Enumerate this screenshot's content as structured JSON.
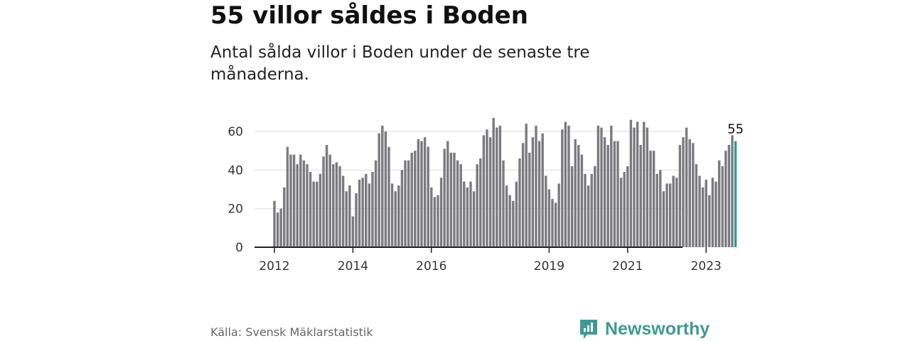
{
  "header": {
    "title": "55 villor såldes i Boden",
    "subtitle": "Antal sålda villor i Boden under de senaste tre månaderna."
  },
  "colors": {
    "bar": "#7a7a80",
    "highlight": "#2a9d8f",
    "grid": "#dddddd",
    "axis": "#222222",
    "brand": "#3d9b93"
  },
  "chart_data": {
    "type": "bar",
    "title": "55 villor såldes i Boden",
    "xlabel": "",
    "ylabel": "",
    "ylim": [
      0,
      70
    ],
    "yticks": [
      0,
      20,
      40,
      60
    ],
    "grid": true,
    "start_year": 2012,
    "start_month": 1,
    "highlight_label": "55",
    "xtick_labels": [
      {
        "label": "2012",
        "index": 0
      },
      {
        "label": "2014",
        "index": 24
      },
      {
        "label": "2016",
        "index": 48
      },
      {
        "label": "2019",
        "index": 84
      },
      {
        "label": "2021",
        "index": 108
      },
      {
        "label": "2023",
        "index": 132
      }
    ],
    "values": [
      24,
      18,
      20,
      31,
      52,
      48,
      48,
      43,
      48,
      45,
      43,
      39,
      34,
      34,
      38,
      47,
      53,
      48,
      43,
      44,
      42,
      37,
      29,
      32,
      16,
      28,
      35,
      36,
      38,
      33,
      39,
      45,
      59,
      63,
      60,
      52,
      33,
      29,
      32,
      40,
      45,
      45,
      49,
      50,
      56,
      55,
      57,
      52,
      31,
      26,
      27,
      36,
      51,
      55,
      49,
      49,
      45,
      43,
      34,
      31,
      34,
      29,
      43,
      46,
      58,
      61,
      57,
      67,
      62,
      63,
      45,
      32,
      27,
      24,
      34,
      46,
      54,
      64,
      49,
      57,
      63,
      55,
      59,
      37,
      30,
      25,
      23,
      33,
      61,
      65,
      63,
      42,
      56,
      53,
      48,
      38,
      32,
      38,
      42,
      63,
      62,
      57,
      53,
      63,
      55,
      55,
      36,
      39,
      42,
      66,
      62,
      65,
      53,
      65,
      62,
      50,
      50,
      38,
      40,
      29,
      33,
      33,
      37,
      36,
      53,
      57,
      62,
      56,
      54,
      43,
      37,
      31,
      35,
      27,
      36,
      34,
      45,
      42,
      50,
      53,
      58,
      55
    ]
  },
  "footer": {
    "source": "Källa: Svensk Mäklarstatistik",
    "brand": "Newsworthy"
  }
}
